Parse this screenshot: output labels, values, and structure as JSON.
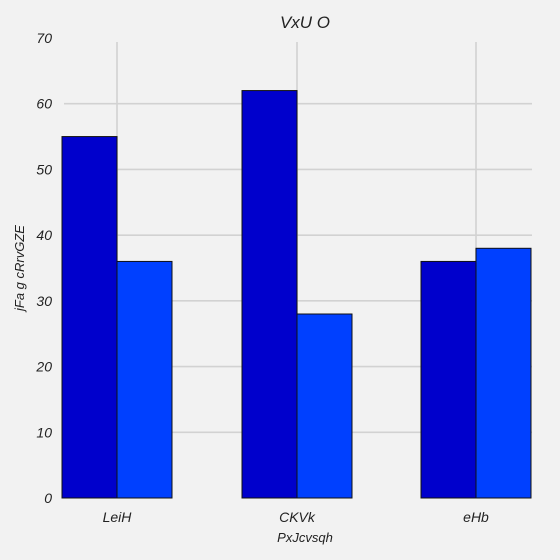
{
  "chart_data": {
    "type": "bar",
    "title": "VxU O",
    "xlabel": "PxJcvsqh",
    "ylabel": "jFa g cRrvGZE",
    "categories": [
      "LeiH",
      "CKVk",
      "eHb"
    ],
    "series": [
      {
        "color": "#0000cc",
        "values": [
          55,
          62,
          36
        ]
      },
      {
        "color": "#0040ff",
        "values": [
          36,
          28,
          38
        ]
      }
    ],
    "ylim": [
      0,
      70
    ],
    "yticks": [
      0,
      10,
      20,
      30,
      40,
      50,
      60,
      70
    ],
    "grid": true,
    "legend": "none"
  }
}
